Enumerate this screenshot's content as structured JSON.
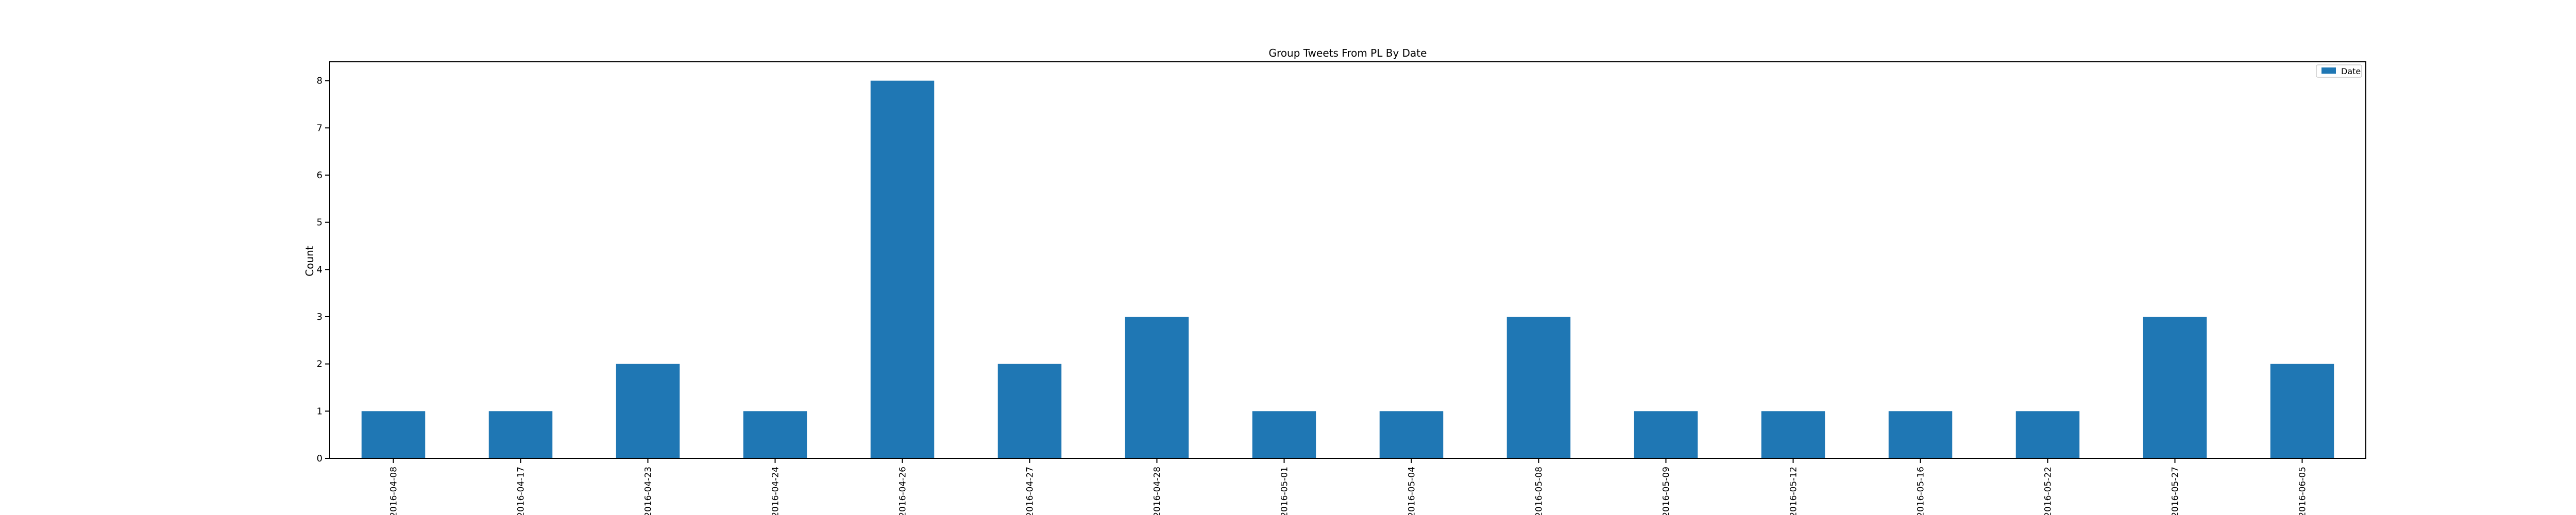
{
  "chart_data": {
    "type": "bar",
    "title": "Group Tweets From PL By Date",
    "xlabel": "",
    "ylabel": "Count",
    "categories": [
      "2016-04-08",
      "2016-04-17",
      "2016-04-23",
      "2016-04-24",
      "2016-04-26",
      "2016-04-27",
      "2016-04-28",
      "2016-05-01",
      "2016-05-04",
      "2016-05-08",
      "2016-05-09",
      "2016-05-12",
      "2016-05-16",
      "2016-05-22",
      "2016-05-27",
      "2016-06-05"
    ],
    "series": [
      {
        "name": "Date",
        "values": [
          1,
          1,
          2,
          1,
          8,
          2,
          3,
          1,
          1,
          3,
          1,
          1,
          1,
          1,
          3,
          2
        ],
        "color": "#1f77b4"
      }
    ],
    "ylim": [
      0,
      8.4
    ],
    "yticks": [
      0,
      1,
      2,
      3,
      4,
      5,
      6,
      7,
      8
    ],
    "grid": false,
    "legend_position": "top-right"
  }
}
